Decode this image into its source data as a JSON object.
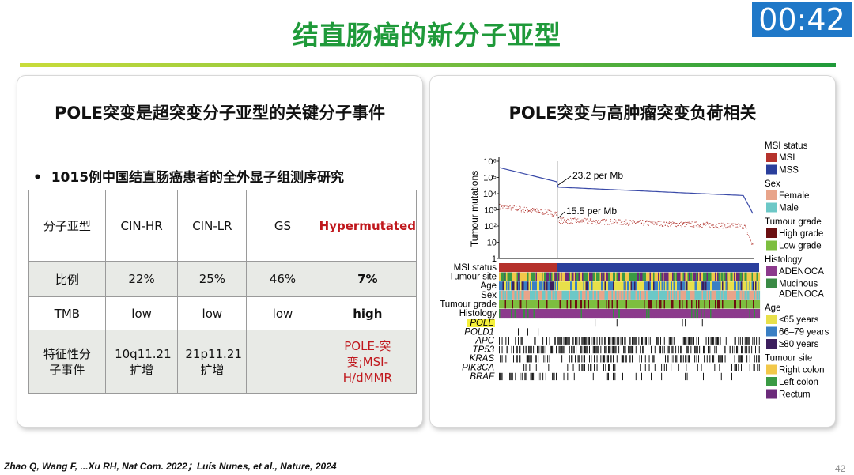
{
  "slide": {
    "title": "结直肠癌的新分子亚型",
    "timer": "00:42",
    "citation": "Zhao Q, Wang F, ...Xu RH, Nat Com. 2022；Luís Nunes, et al., Nature,  2024",
    "page_number": "42"
  },
  "left_panel": {
    "heading": "POLE突变是超突变分子亚型的关键分子事件",
    "bullet_symbol": "•",
    "bullet_text": "1015例中国结直肠癌患者的全外显子组测序研究",
    "table": {
      "header": [
        "分子亚型",
        "CIN-HR",
        "CIN-LR",
        "GS",
        "Hypermutated"
      ],
      "rows": [
        [
          "比例",
          "22%",
          "25%",
          "46%",
          "7%"
        ],
        [
          "TMB",
          "low",
          "low",
          "low",
          "high"
        ],
        [
          "特征性分子事件",
          "10q11.21扩增",
          "21p11.21扩增",
          "",
          "POLE-突变;MSI-H/dMMR"
        ]
      ]
    }
  },
  "right_panel": {
    "heading": "POLE突变与高肿瘤突变负荷相关",
    "figure": {
      "y_axis_label": "Tumour mutations",
      "y_ticks": [
        "10⁶",
        "10⁵",
        "10⁴",
        "10³",
        "10²",
        "10",
        "1"
      ],
      "annotation_msi": "23.2 per Mb",
      "annotation_mss": "15.5 per Mb",
      "track_labels": [
        "MSI status",
        "Tumour site",
        "Age",
        "Sex",
        "Tumour grade",
        "Histology"
      ],
      "gene_labels": [
        "POLE",
        "POLD1",
        "APC",
        "TP53",
        "KRAS",
        "PIK3CA",
        "BRAF"
      ],
      "legend": [
        {
          "title": "MSI status",
          "items": [
            {
              "label": "MSI",
              "color": "#b5322c"
            },
            {
              "label": "MSS",
              "color": "#2a3f9c"
            }
          ]
        },
        {
          "title": "Sex",
          "items": [
            {
              "label": "Female",
              "color": "#e8a48a"
            },
            {
              "label": "Male",
              "color": "#6cc8c7"
            }
          ]
        },
        {
          "title": "Tumour grade",
          "items": [
            {
              "label": "High grade",
              "color": "#6b0f12"
            },
            {
              "label": "Low grade",
              "color": "#7dbe3f"
            }
          ]
        },
        {
          "title": "Histology",
          "items": [
            {
              "label": "ADENOCA",
              "color": "#8c3a8c"
            },
            {
              "label": "Mucinous ADENOCA",
              "color": "#3a8a44"
            }
          ]
        },
        {
          "title": "Age",
          "items": [
            {
              "label": "≤65 years",
              "color": "#e8e04a"
            },
            {
              "label": "66–79 years",
              "color": "#3a7fc4"
            },
            {
              "label": "≥80 years",
              "color": "#3c1f5e"
            }
          ]
        },
        {
          "title": "Tumour site",
          "items": [
            {
              "label": "Right colon",
              "color": "#f2c84a"
            },
            {
              "label": "Left colon",
              "color": "#3a9a44"
            },
            {
              "label": "Rectum",
              "color": "#6b2a7a"
            }
          ]
        }
      ]
    }
  }
}
